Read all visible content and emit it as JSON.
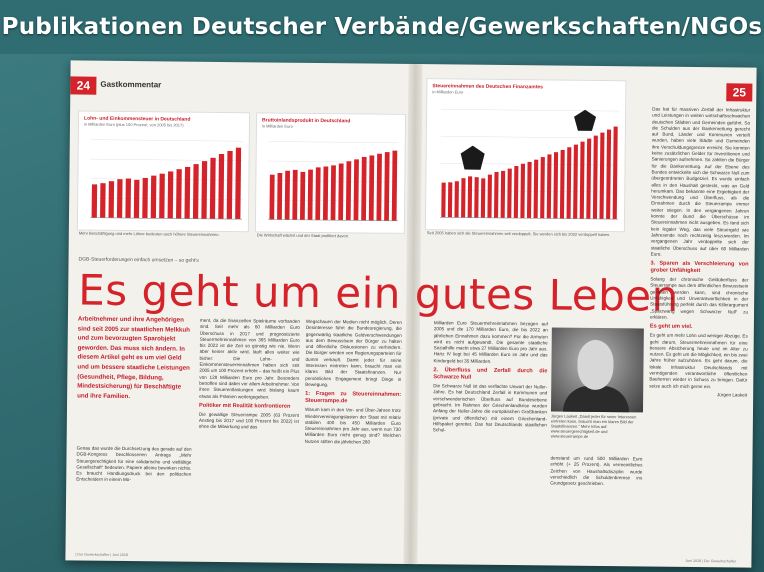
{
  "banner": {
    "title": "Publikationen Deutscher Verbände/Gewerkschaften/NGOs"
  },
  "left_page": {
    "page_number": "24",
    "section": "Gastkommentar",
    "kicker": "DGB-Steuerforderungen einfach umsetzen – so geht's",
    "headline": "Es geht um ein gutes Leben",
    "lead": "Arbeitnehmer und ihre Angehörigen sind seit 2005 zur staatlichen Melkkuh und zum bevorzugten Sparobjekt geworden. Das muss sich ändern. In diesem Artikel geht es um viel Geld und um bessere staatliche Leistungen (Gesundheit, Pflege, Bildung, Mindestsicherung) für Beschäftigte und ihre Familien.",
    "col1": "Genau das wurde die Durchsetzung des gerade auf den DGB-Kongress beschlossenen Antrags „Mehr Steuergerechtigkeit für eine solidarische und vielfältige Gesellschaft“ bedeuten. Papiere alleine bewirken nichts. Es braucht Handlungsdruck bei den politischen Entscheidern in einem Mo-",
    "col2": "ment, da die finanziellen Spielräume vorhanden sind. Seit mehr als 60 Milliarden Euro Überschuss in 2017 und prognostizierte Steuermehreinnahmen von 365 Milliarden Euro bis 2022 ist die Zeit so günstig wie nie. Wenn aber keiner aktiv wird, läuft alles weiter wie bisher: Die Lohn- und Einkommensteuereinnahmen haben sich seit 2005 um 100 Prozent erhöht – das heißt ein Plus von 128 Milliarden Euro pro Jahr. Besonders betroffen sind dabei vor allem Arbeitnehmer. Von ihren Steuerentlastungen wird bislang kaum etwas als Prämien weitergegeben.",
    "col2_heading": "Politiker mit Realität konfrontieren",
    "col2b": "Die gewaltige Steuerrampe 2005 (63 Prozent Anstieg bis 2017 und 100 Prozent bis 2022) ist ohne die Mitwirkung und das",
    "col3": "Wegschauen der Medien nicht möglich. Deren Desinteresse führt die Bundesregierung, die gegenwärtig staatliche Geldverschwendungen aus dem Bewusstsein der Bürger zu halten und öffentliche Diskussionen zu verhindern. Die Bürger werden von Regierungsparteien für dumm verkauft. Damit jeder für seine Interessen eintreten kann, braucht man ein klares Bild der Staatsfinanzen. Nur persönliches Engagement bringt Dinge in Bewegung.",
    "col3_heading": "1: Fragen zu Steuereinnahmen: Steuerrampe.de",
    "col3b": "Warum kam in den Vor- und Über-Jahren trotz Wiedervereinigungslasten der Staat mit relativ stabilen 400 bis 450 Milliarden Euro Steuereinnahmen pro Jahr aus, wenn nun 730 Milliarden Euro nicht genug sind? Welchen Nutzen stiften die jährlichen 280",
    "footer": "| Der Gewerkschafter | Juni 2018",
    "charts": [
      {
        "title": "Lohn- und Einkommensteuer in Deutschland",
        "subtitle": "in Milliarden Euro (plus 100 Prozent, von 2005 bis 2017)",
        "caption": "Mehr Beschäftigung und mehr Löhne bedeuten auch höhere Steuereinnahmen."
      },
      {
        "title": "Bruttoinlandsprodukt in Deutschland",
        "subtitle": "in Milliarden Euro",
        "caption": "Die Wirtschaft wächst und der Staat profitiert davon."
      }
    ]
  },
  "right_page": {
    "page_number": "25",
    "chart": {
      "title": "Steuereinnahmen des Deutschen Finanzamtes",
      "subtitle": "in Milliarden Euro",
      "caption": "Seit 2005 haben sich die Steuereinnahmen seit verdoppelt. Sie werden sich bis 2022 verdoppelt haben."
    },
    "col1": "Milliarden Euro Steuermehreinnahmen bezogen auf 2005 und die 170 Milliarden Euro, die bis 2022 an jährlichen Einnahmen dazu kommen? Für die Armuten wird es nicht aufgewandt. Die gesamte staatliche Sozialhilfe macht etwa 27 Milliarden Euro pro Jahr aus. Hartz IV liegt bei 45 Milliarden Euro im Jahr und das Kindergeld bei 35 Milliarden.",
    "col1_heading": "2. Überfluss und Zerfall durch die Schwarze Null",
    "col1b": "Die Schwarze Null ist das verflachte Unwort der Nuller-Jahre. Es hat Deutschland Zerfall in Kommunen und verschwenderischen Überfluss auf Bundesebene gebracht. Im Rahmen der Griechenlandkrise wurden Anfang der Nuller-Jahre die europäischen Großbanken (private und öffentliche) mit einem Griechenland-Hilfspaket gerettet. Das hat Deutschlands staatlichen Schul-",
    "col2": "denstand um rund 500 Milliarden Euro erhöht (+ 25 Prozent). Als vermeintliches Zeichen von Haushaltsdisziplin wurde verschiedlich die Schuldenbremse ins Grundgesetz geschrieben.",
    "photo_caption": "Jürgen Laukeit „Damit jeder für seine Interessen eintreten kann, braucht man ein klares Bild der Staatsfinanzen.“ Mehr Infos auf: www.steuergerechtigkeit.de und www.steuerrampe.de",
    "col3": "Das hat für massiven Zerfall der Infrastruktur und Leistungen in weiten wirtschaftsschwachen deutschen Städten und Gemeinden geführt. So die Schulden aus der Bankenrettung gerecht auf Bund, Länder und Kommunen verteilt wurden, haben viele Städte und Gemeinden ihre Verschuldungsgrenze erreicht. Sie konnten keine zusätzlichen Gelder für Investitionen und Sanierungen aufnehmen. So zahlten die Bürger für die Bankenrettung. Auf der Ebene des Bundes entwickelte sich die Schwarze Null zum übergeordneten Budgetziel. Es wurde einfach alles in den Haushalt gesteckt, was an Geld herumkam. Das bekannte eine Ergiebigkeit der Verschwendung und Überfluss, als die Einnahmen durch die Steuerrampe immer weiter stiegen. In den vergangenen Jahren konnte der Bund die Überschüsse im Steuereinnahmen nicht ausgeben. Es fand sich kein legaler Weg, das viele Steuergeld wie Jahresende noch rechtzeitig loszuwerden. Im vergangenen Jahr verdoppelte sich der staatliche Überschuss auf über 60 Milliarden Euro.",
    "col3_heading": "3. Sparen als Verschleierung von grober Unfähigkeit",
    "col3b": "Solang der chronische Geldüberfluss der Steuerrampe aus dem öffentlichen Bewusstsein gehalten werden kann, sind chronische Unfähigkeit und Unverantwortlichkeit in der Staatsführung perfekt durch das Killerargument „Sparzwang wegen Schwarzer Null“ zu erklären.",
    "col3_heading2": "Es geht um viel.",
    "col3c": "Es geht um mehr Lohn und weniger Abzüge. Es geht darum, Steuermehreinnahmen für eine bessere Absicherung heute und im Alter zu nutzen. Es geht um die Möglichkeit, ein bis zwei Jahre früher aufzuhören. Es geht darum, die lokale Infrastruktur Deutschlands mit vermögenden verantwortliche öffentlichen Bauherren wieder in Schuss zu bringen. Dafür setze auch ich mich gerne ein.",
    "author": "Jürgen Laukeit",
    "footer": "Juni 2018 | Der Gewerkschafter"
  },
  "chart_data": [
    {
      "type": "bar",
      "title": "Lohn- und Einkommensteuer in Deutschland",
      "values": [
        128,
        133,
        141,
        149,
        152,
        147,
        155,
        164,
        172,
        181,
        190,
        199,
        210,
        222,
        235,
        250,
        262,
        275
      ],
      "ylim": [
        0,
        300
      ]
    },
    {
      "type": "bar",
      "title": "Bruttoinlandsprodukt in Deutschland",
      "values": [
        2300,
        2390,
        2510,
        2560,
        2460,
        2580,
        2700,
        2750,
        2810,
        2910,
        3030,
        3130,
        3260,
        3340,
        3430,
        3520,
        3600
      ],
      "ylim": [
        0,
        4000
      ]
    },
    {
      "type": "bar",
      "title": "Steuereinnahmen des Deutschen Finanzamtes",
      "values": [
        450,
        455,
        470,
        510,
        535,
        525,
        510,
        560,
        595,
        610,
        640,
        675,
        705,
        730,
        760,
        795,
        830,
        860,
        890,
        925,
        960,
        1000,
        1040,
        1080,
        1120,
        1160,
        1200
      ],
      "ylim": [
        0,
        1400
      ]
    }
  ],
  "colors": {
    "accent": "#d4232a",
    "background": "#2f6d72",
    "paper": "#f3f1ec"
  }
}
